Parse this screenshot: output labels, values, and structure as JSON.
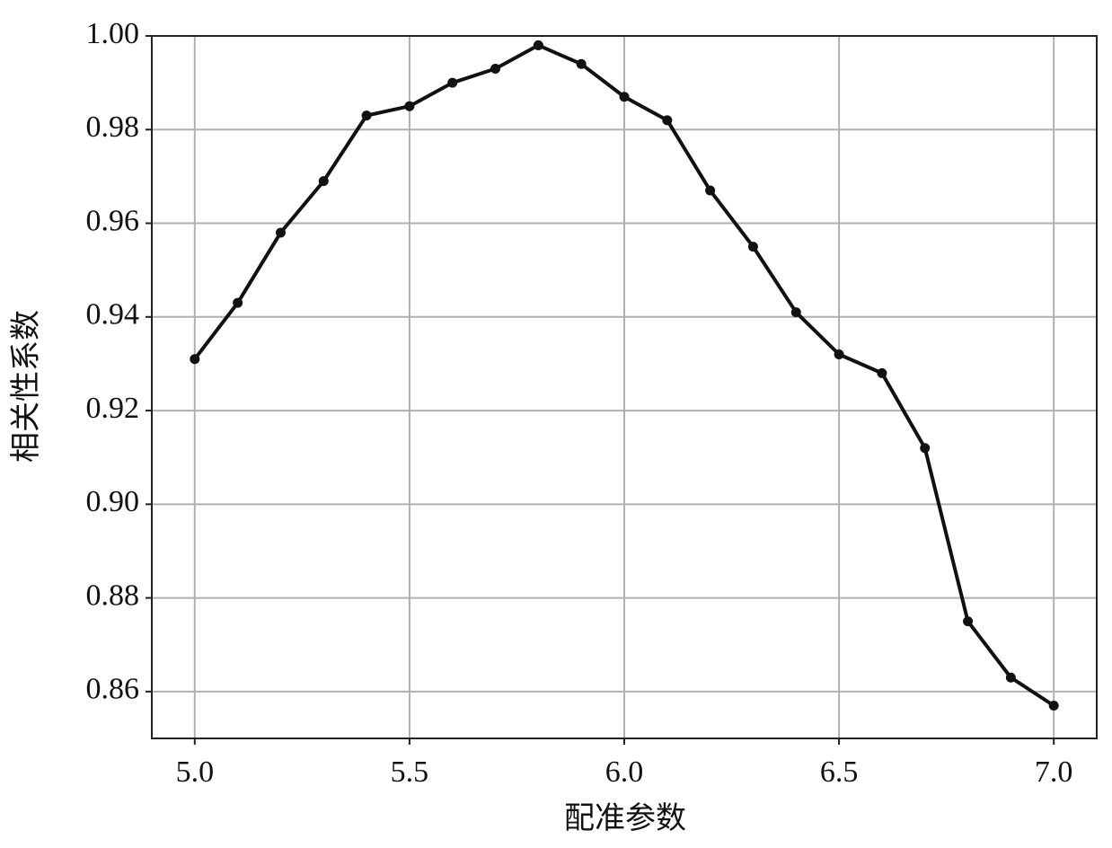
{
  "chart_data": {
    "type": "line",
    "x_label": "配准参数",
    "y_label": "相关性系数",
    "x": [
      5.0,
      5.1,
      5.2,
      5.3,
      5.4,
      5.5,
      5.6,
      5.7,
      5.8,
      5.9,
      6.0,
      6.1,
      6.2,
      6.3,
      6.4,
      6.5,
      6.6,
      6.7,
      6.8,
      6.9,
      7.0
    ],
    "series": [
      {
        "color": "#111111",
        "values": [
          0.931,
          0.943,
          0.958,
          0.969,
          0.983,
          0.985,
          0.99,
          0.993,
          0.998,
          0.994,
          0.987,
          0.982,
          0.967,
          0.955,
          0.941,
          0.932,
          0.928,
          0.912,
          0.875,
          0.863,
          0.857
        ]
      }
    ],
    "xlim": [
      4.9,
      7.1
    ],
    "ylim": [
      0.85,
      1.0
    ],
    "xticks": [
      {
        "value": 5,
        "label": "5.0"
      },
      5.5,
      {
        "value": 6,
        "label": "6.0"
      },
      6.5,
      {
        "value": 7,
        "label": "7.0"
      }
    ],
    "yticks": [
      0.86,
      0.88,
      {
        "value": 0.9,
        "label": "0.90"
      },
      0.92,
      0.94,
      0.96,
      0.98,
      {
        "value": 1,
        "label": "1.00"
      }
    ],
    "grid": true,
    "markers": true
  }
}
